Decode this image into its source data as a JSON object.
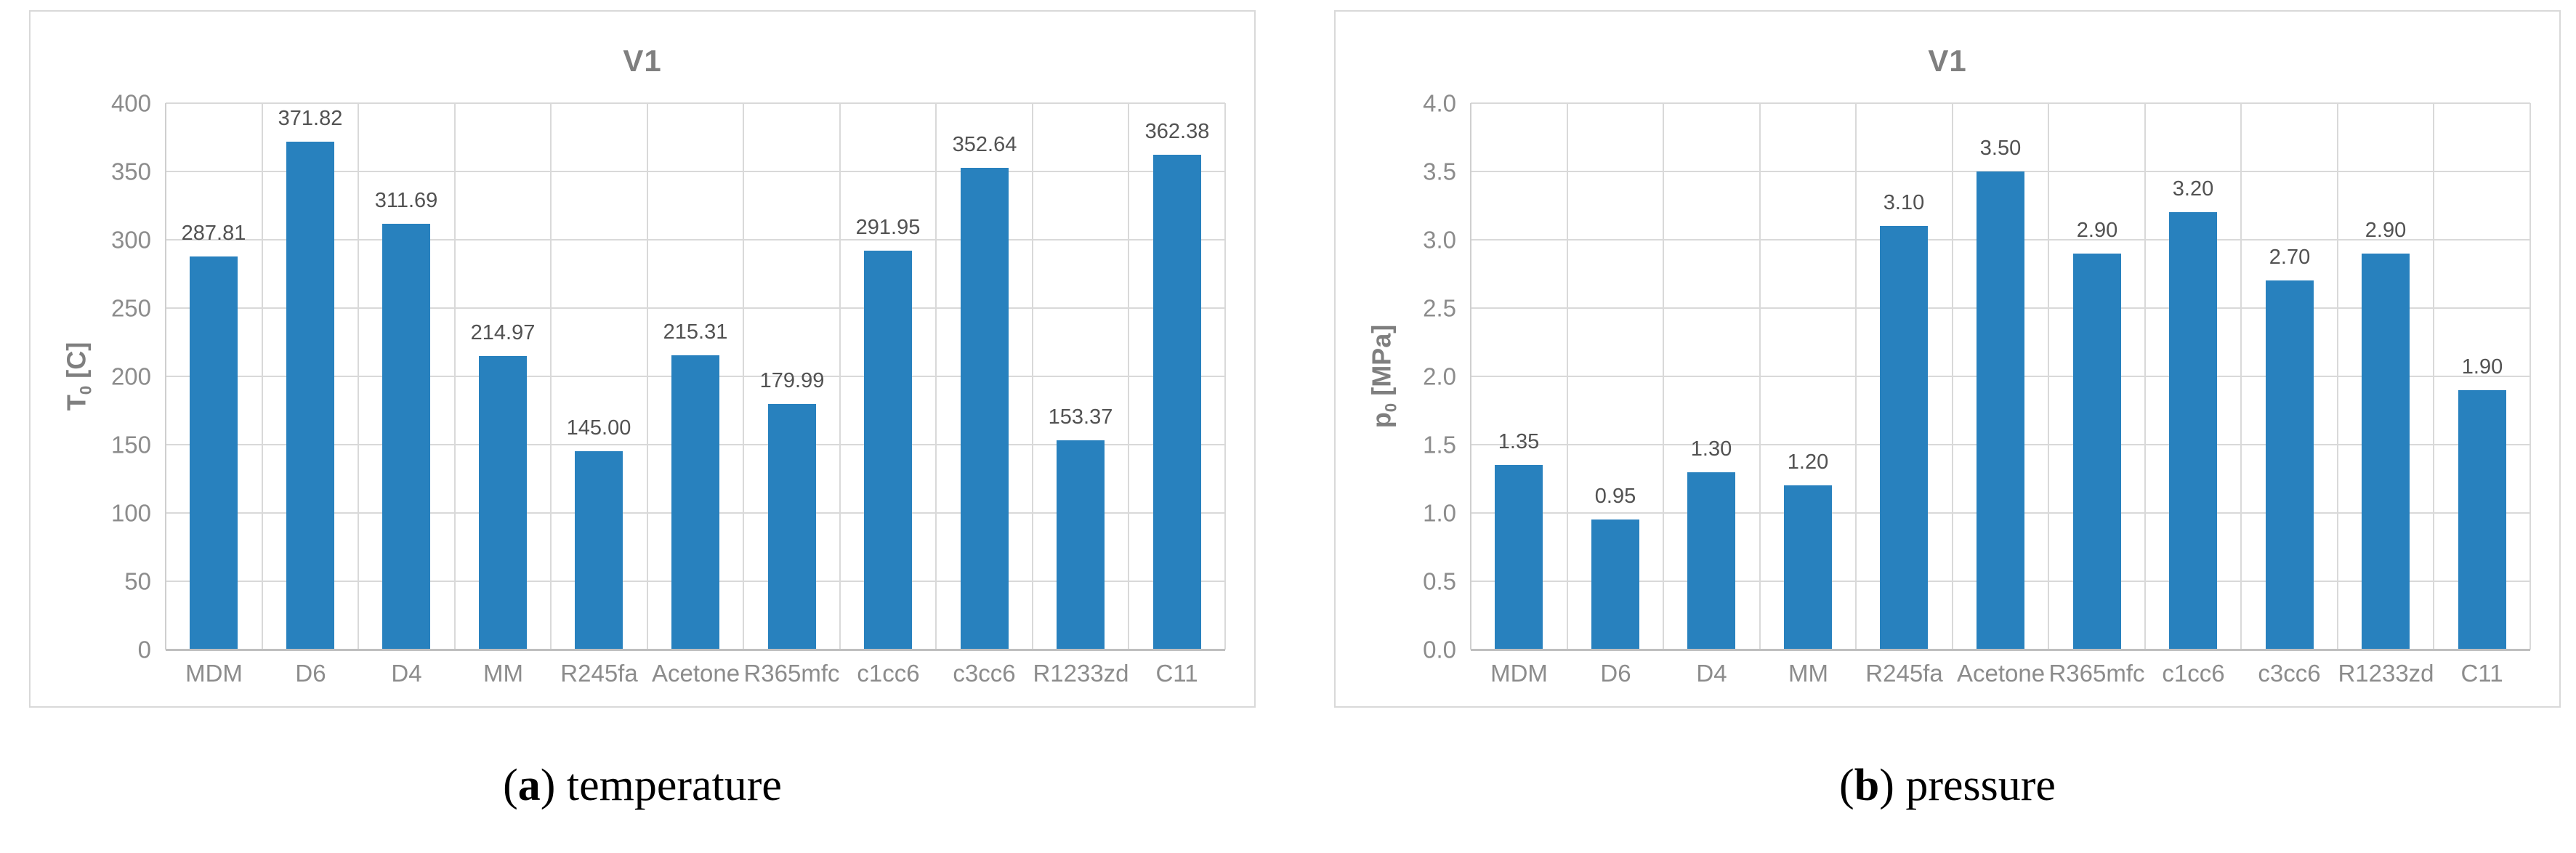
{
  "figure": {
    "captions": [
      {
        "open": "(",
        "letter": "a",
        "close": ")",
        "text": " temperature"
      },
      {
        "open": "(",
        "letter": "b",
        "close": ")",
        "text": " pressure"
      }
    ]
  },
  "palette": {
    "bar": "#2881BE",
    "gridline": "#D9D9D9",
    "axis_line": "#BFBFBF",
    "tick_text": "#8C8C8C",
    "data_label_text": "#525252",
    "title_text": "#7F7F7F"
  },
  "chart_data": [
    {
      "type": "bar",
      "title": "V1",
      "ylabel": {
        "base": "T",
        "sub": "0",
        "unit": " [C]"
      },
      "xlabel": "",
      "categories": [
        "MDM",
        "D6",
        "D4",
        "MM",
        "R245fa",
        "Acetone",
        "R365mfc",
        "c1cc6",
        "c3cc6",
        "R1233zd",
        "C11"
      ],
      "values": [
        287.81,
        371.82,
        311.69,
        214.97,
        145.0,
        215.31,
        179.99,
        291.95,
        352.64,
        153.37,
        362.38
      ],
      "value_labels": [
        "287.81",
        "371.82",
        "311.69",
        "214.97",
        "145.00",
        "215.31",
        "179.99",
        "291.95",
        "352.64",
        "153.37",
        "362.38"
      ],
      "ylim": [
        0,
        400
      ],
      "ytick_labels": [
        "0",
        "50",
        "100",
        "150",
        "200",
        "250",
        "300",
        "350",
        "400"
      ],
      "grid": true,
      "legend": "none"
    },
    {
      "type": "bar",
      "title": "V1",
      "ylabel": {
        "base": "p",
        "sub": "0",
        "unit": " [MPa]"
      },
      "xlabel": "",
      "categories": [
        "MDM",
        "D6",
        "D4",
        "MM",
        "R245fa",
        "Acetone",
        "R365mfc",
        "c1cc6",
        "c3cc6",
        "R1233zd",
        "C11"
      ],
      "values": [
        1.35,
        0.95,
        1.3,
        1.2,
        3.1,
        3.5,
        2.9,
        3.2,
        2.7,
        2.9,
        1.9
      ],
      "value_labels": [
        "1.35",
        "0.95",
        "1.30",
        "1.20",
        "3.10",
        "3.50",
        "2.90",
        "3.20",
        "2.70",
        "2.90",
        "1.90"
      ],
      "ylim": [
        0.0,
        4.0
      ],
      "ytick_labels": [
        "0.0",
        "0.5",
        "1.0",
        "1.5",
        "2.0",
        "2.5",
        "3.0",
        "3.5",
        "4.0"
      ],
      "grid": true,
      "legend": "none"
    }
  ]
}
